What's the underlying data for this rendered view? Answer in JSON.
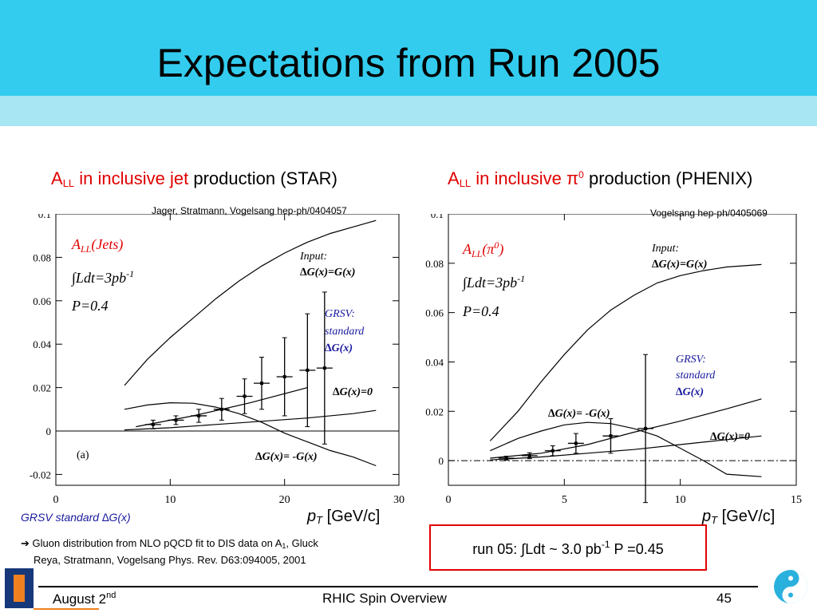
{
  "slide": {
    "title": "Expectations from Run 2005",
    "footer_date": "August 2",
    "footer_date_sup": "nd",
    "footer_center": "RHIC Spin Overview",
    "footer_page": "45"
  },
  "left": {
    "subtitle_a": "A",
    "subtitle_sub": "LL",
    "subtitle_red": " in inclusive jet",
    "subtitle_black": " production (STAR)",
    "citation": "Jager, Stratmann, Vogelsang hep-ph/0404057",
    "xlabel_p": "p",
    "xlabel_sub": "T",
    "xlabel_unit": " [GeV/c]",
    "bottom_note": "GRSV standard  ∆G(x)",
    "gluon_note_line1": "➔ Gluon distribution from NLO pQCD fit to DIS data on A",
    "gluon_note_sub": "1",
    "gluon_note_line1_end": ", Gluck",
    "gluon_note_line2": "Reya, Stratmann, Vogelsang Phys. Rev. D63:094005, 2001"
  },
  "right": {
    "subtitle_a": "A",
    "subtitle_sub": "LL",
    "subtitle_red": " in inclusive π",
    "subtitle_sup": "0",
    "subtitle_black": " production (PHENIX)",
    "citation": "Vogelsang hep-ph/0405069",
    "xlabel_p": "p",
    "xlabel_sub": "T",
    "xlabel_unit": " [GeV/c]",
    "run_note": "run 05: ∫Ldt ~ 3.0 pb",
    "run_note_sup": "-1",
    "run_note_end": " P =0.45"
  },
  "chart_data": [
    {
      "type": "line",
      "panel_label": "(a)",
      "xlim": [
        0,
        30
      ],
      "ylim": [
        -0.025,
        0.1
      ],
      "xticks": [
        0,
        10,
        20,
        30
      ],
      "yticks": [
        -0.02,
        0,
        0.02,
        0.04,
        0.06,
        0.08,
        0.1
      ],
      "ytick_labels": [
        "-0.02",
        "0",
        "0.02",
        "0.04",
        "0.06",
        "0.08",
        "0.1"
      ],
      "annotations": {
        "obs": "A",
        "obs_sub": "LL",
        "obs_rest": "(Jets)",
        "lumi": "∫Ldt=3pb",
        "lumi_sup": "-1",
        "pol": "P=0.4",
        "input1": "Input:",
        "input2": "∆G(x)=G(x)",
        "grsv1": "GRSV:",
        "grsv2": "standard",
        "grsv3": "∆G(x)",
        "zero": "∆G(x)=0",
        "neg": "∆G(x)= -G(x)"
      },
      "series": [
        {
          "name": "∆G(x)=G(x)",
          "x": [
            6,
            8,
            10,
            12,
            14,
            16,
            18,
            20,
            22,
            24,
            26,
            28
          ],
          "y": [
            0.021,
            0.033,
            0.043,
            0.052,
            0.061,
            0.069,
            0.076,
            0.082,
            0.087,
            0.091,
            0.094,
            0.097
          ]
        },
        {
          "name": "∆G(x)=0",
          "x": [
            6,
            10,
            14,
            18,
            22,
            26,
            28
          ],
          "y": [
            0.0005,
            0.0015,
            0.003,
            0.0045,
            0.006,
            0.008,
            0.0095
          ]
        },
        {
          "name": "∆G(x)= -G(x)",
          "x": [
            6,
            8,
            10,
            12,
            14,
            16,
            18,
            20,
            22,
            24,
            26,
            28
          ],
          "y": [
            0.01,
            0.012,
            0.013,
            0.0128,
            0.011,
            0.008,
            0.004,
            -0.001,
            -0.005,
            -0.009,
            -0.012,
            -0.016
          ]
        },
        {
          "name": "GRSV standard",
          "x": [
            7,
            12,
            17,
            22
          ],
          "y": [
            0.002,
            0.007,
            0.013,
            0.02
          ]
        }
      ],
      "points": {
        "x": [
          8.5,
          10.5,
          12.5,
          14.5,
          16.5,
          18,
          20,
          22,
          23.5
        ],
        "y": [
          0.003,
          0.005,
          0.007,
          0.01,
          0.016,
          0.022,
          0.025,
          0.028,
          0.029
        ],
        "err": [
          0.002,
          0.002,
          0.003,
          0.005,
          0.008,
          0.012,
          0.018,
          0.026,
          0.035
        ]
      }
    },
    {
      "type": "line",
      "xlim": [
        0,
        15
      ],
      "ylim": [
        -0.01,
        0.1
      ],
      "xticks": [
        0,
        5,
        10,
        15
      ],
      "yticks": [
        0,
        0.02,
        0.04,
        0.06,
        0.08,
        0.1
      ],
      "ytick_labels": [
        "0",
        "0.02",
        "0.04",
        "0.06",
        "0.08",
        "0.1"
      ],
      "annotations": {
        "obs": "A",
        "obs_sub": "LL",
        "obs_rest": "(π",
        "obs_sup": "0",
        "obs_close": ")",
        "lumi": "∫Ldt=3pb",
        "lumi_sup": "-1",
        "pol": "P=0.4",
        "input1": "Input:",
        "input2": "∆G(x)=G(x)",
        "grsv1": "GRSV:",
        "grsv2": "standard",
        "grsv3": "∆G(x)",
        "neg": "∆G(x)= -G(x)",
        "zero": "∆G(x)=0"
      },
      "series": [
        {
          "name": "∆G(x)=G(x)",
          "x": [
            1.8,
            3,
            4,
            5,
            6,
            7,
            8,
            9,
            10,
            11,
            12,
            13.5
          ],
          "y": [
            0.008,
            0.02,
            0.032,
            0.043,
            0.053,
            0.061,
            0.067,
            0.072,
            0.075,
            0.077,
            0.0785,
            0.0795
          ]
        },
        {
          "name": "∆G(x)= -G(x)",
          "x": [
            1.8,
            3,
            4,
            5,
            6,
            7,
            8,
            9,
            10,
            11,
            12,
            13.5
          ],
          "y": [
            0.004,
            0.009,
            0.012,
            0.0145,
            0.0155,
            0.015,
            0.013,
            0.01,
            0.005,
            0.0,
            -0.0055,
            -0.0065
          ]
        },
        {
          "name": "∆G(x)=0",
          "x": [
            1.8,
            4,
            6,
            8,
            10,
            12,
            13.5
          ],
          "y": [
            0.0003,
            0.0015,
            0.003,
            0.0045,
            0.0065,
            0.0085,
            0.01
          ]
        },
        {
          "name": "GRSV standard",
          "x": [
            1.8,
            4,
            6,
            8,
            10,
            12,
            13.5
          ],
          "y": [
            0.001,
            0.003,
            0.0065,
            0.0115,
            0.016,
            0.021,
            0.025
          ]
        }
      ],
      "points": {
        "x": [
          2.5,
          3.5,
          4.5,
          5.5,
          7,
          8.5
        ],
        "y": [
          0.001,
          0.002,
          0.004,
          0.007,
          0.01,
          0.013
        ],
        "err": [
          0.0008,
          0.0012,
          0.002,
          0.004,
          0.007,
          0.03
        ]
      }
    }
  ]
}
